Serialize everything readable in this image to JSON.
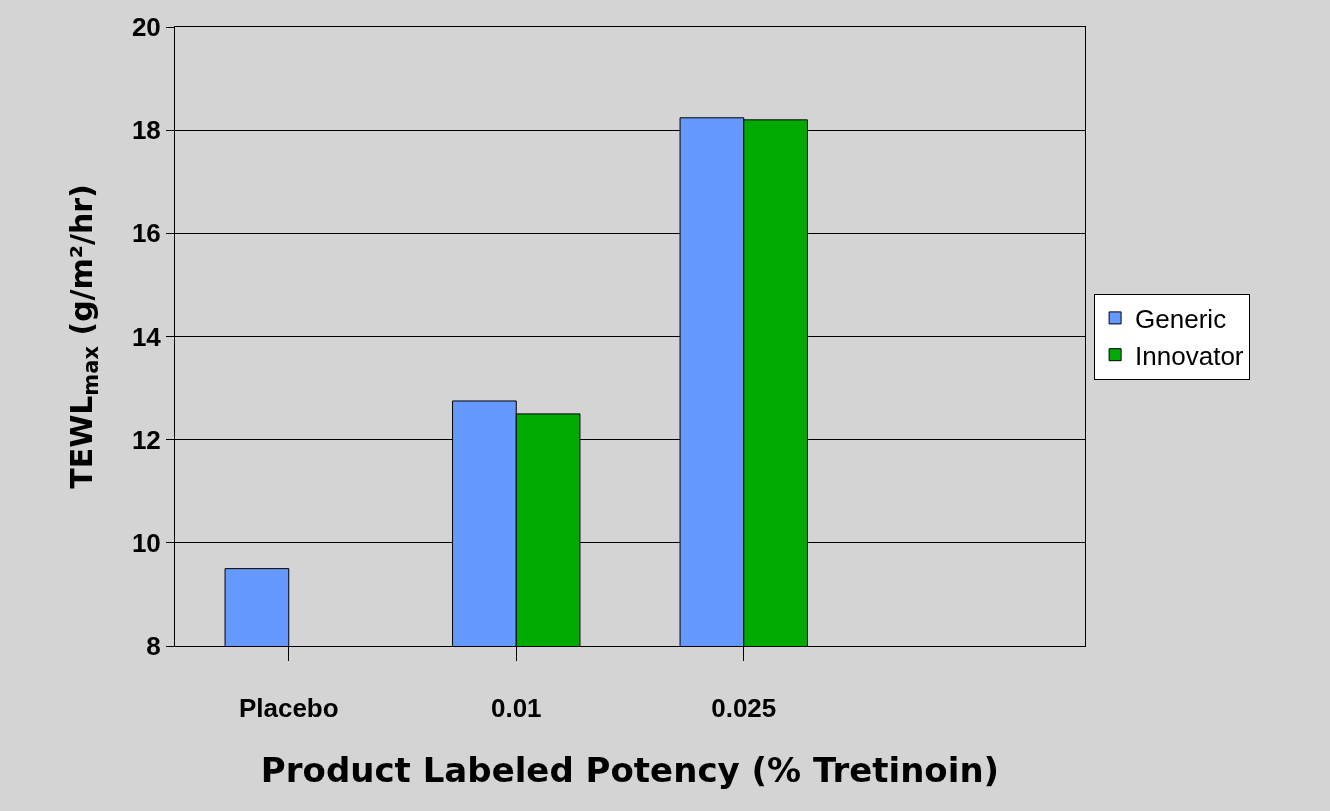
{
  "chart_data": {
    "type": "bar",
    "xlabel": "Product Labeled Potency (% Tretinoin)",
    "ylabel": "TEWL$_{max}$ (g/m²/hr)",
    "categories": [
      "Placebo",
      "0.01",
      "0.025",
      null
    ],
    "series": [
      {
        "name": "Generic",
        "color": "#6699ff",
        "values": [
          9.5,
          12.75,
          18.24,
          null
        ]
      },
      {
        "name": "Innovator",
        "color": "#00aa00",
        "values": [
          null,
          12.5,
          18.2,
          null
        ]
      }
    ],
    "ylim": [
      8,
      20
    ],
    "yticks": [
      8,
      10,
      12,
      14,
      16,
      18,
      20
    ],
    "grid": "y",
    "legend": "right"
  }
}
